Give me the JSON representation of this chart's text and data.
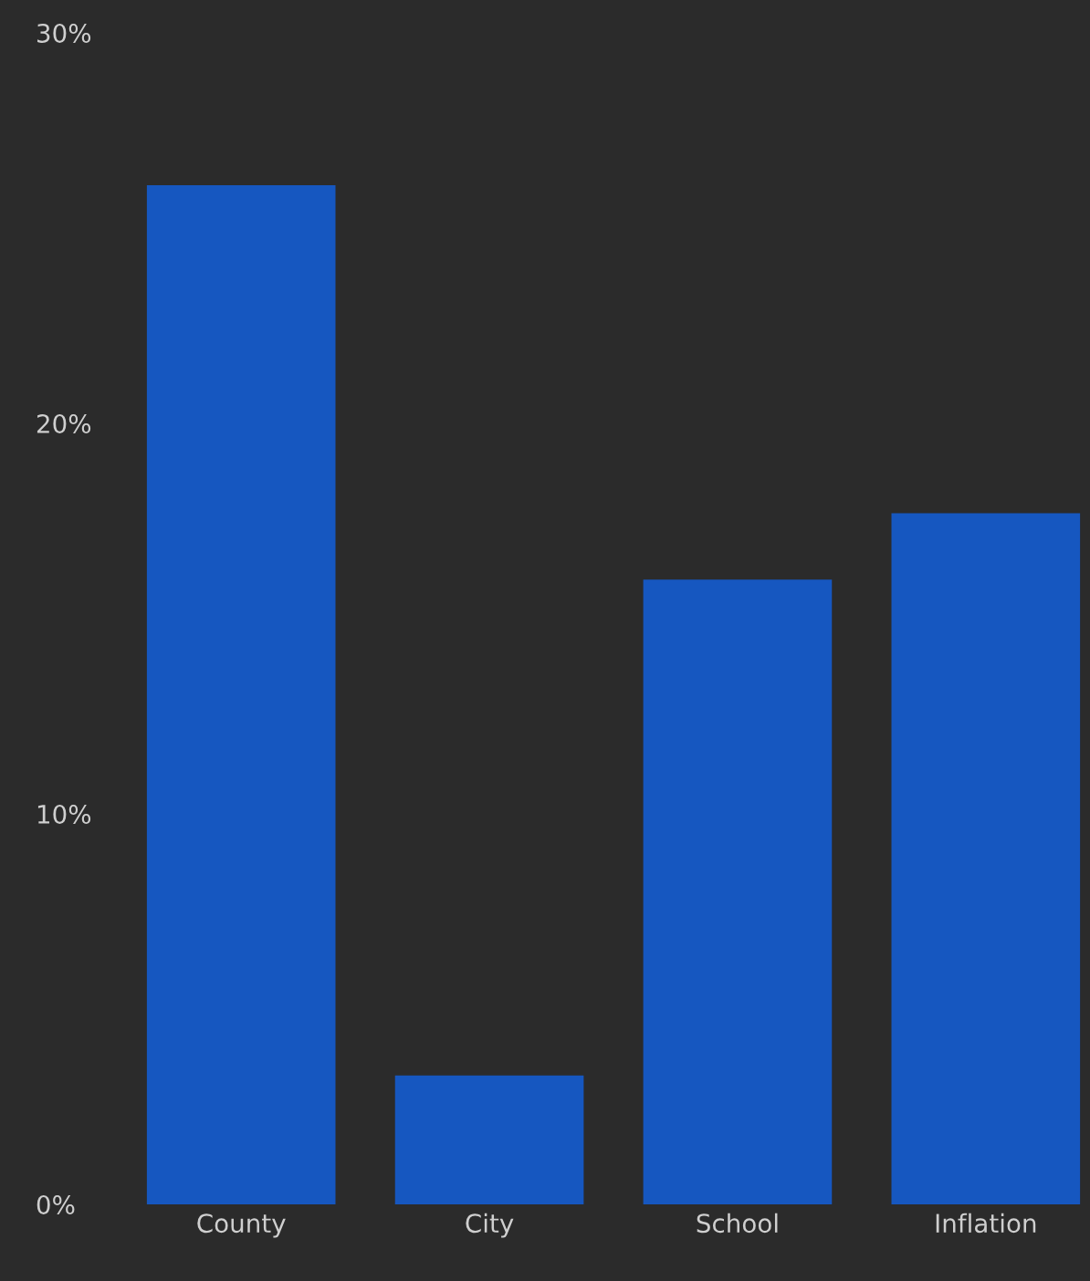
{
  "chart_data": {
    "type": "bar",
    "categories": [
      "County",
      "City",
      "School",
      "Inflation"
    ],
    "values": [
      26.1,
      3.3,
      16.0,
      17.7
    ],
    "color": "#1657c0",
    "ylim": [
      0,
      30
    ],
    "yticks": [
      {
        "value": 0,
        "label": "0%"
      },
      {
        "value": 10,
        "label": "10%"
      },
      {
        "value": 20,
        "label": "20%"
      },
      {
        "value": 30,
        "label": "30%"
      }
    ],
    "grid": false
  }
}
